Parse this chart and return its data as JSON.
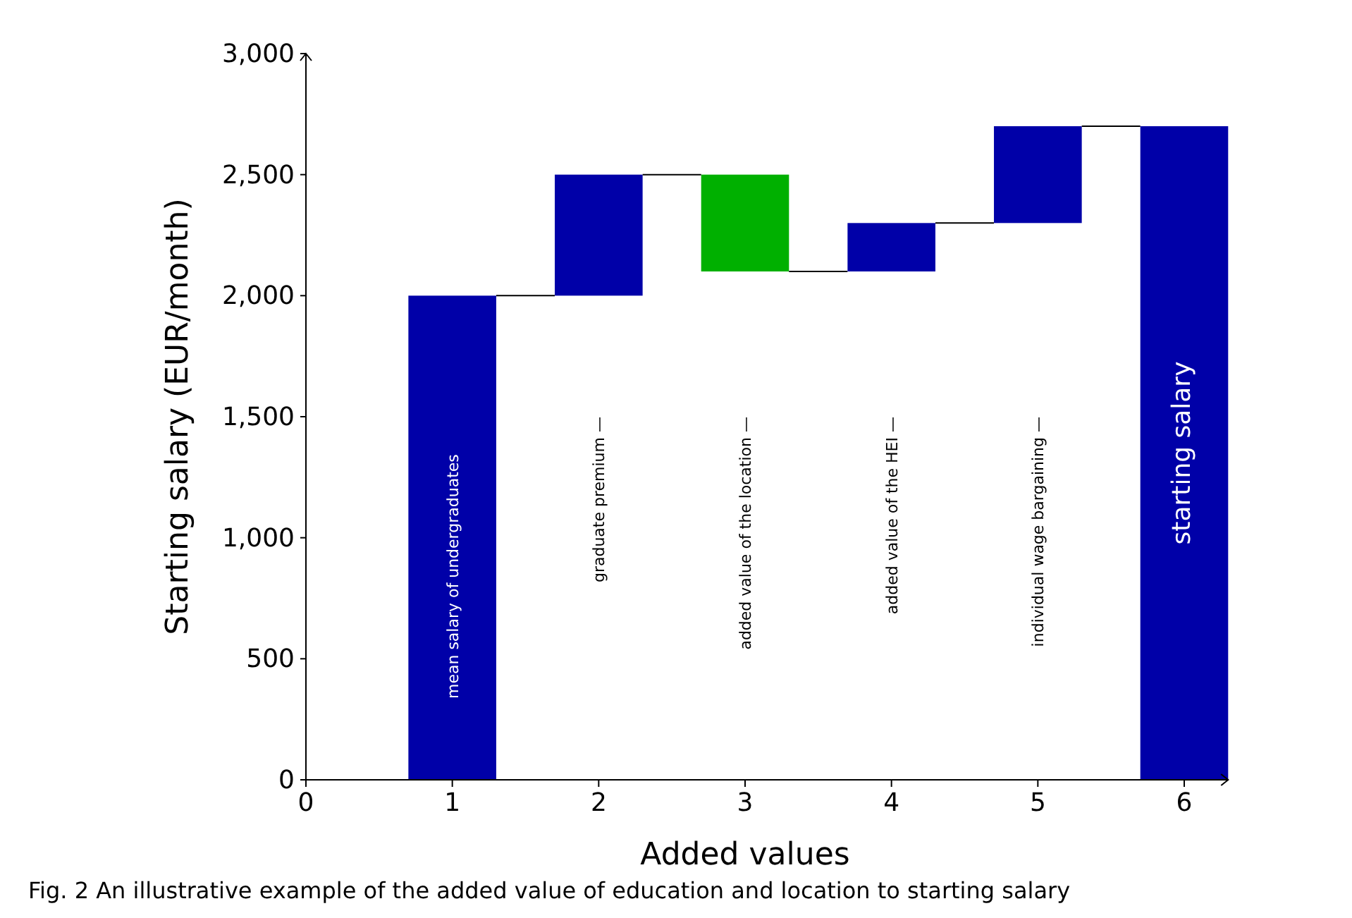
{
  "chart_data": {
    "type": "bar",
    "xlabel": "Added values",
    "ylabel": "Starting salary (EUR/month)",
    "x": [
      1,
      2,
      3,
      4,
      5,
      6
    ],
    "values": [
      2000,
      500,
      -400,
      200,
      400,
      2700
    ],
    "base": [
      0,
      2000,
      2500,
      2100,
      2300,
      0
    ],
    "colors": [
      "#0000a8",
      "#0000a8",
      "#00b000",
      "#0000a8",
      "#0000a8",
      "#0000a8"
    ],
    "xlim": [
      0,
      6.3
    ],
    "xticks": [
      0,
      1,
      2,
      3,
      4,
      5,
      6
    ],
    "ylim": [
      0,
      3000
    ],
    "yticks": [
      0,
      500,
      {
        "value": 1000,
        "label": "1,000"
      },
      {
        "value": 1500,
        "label": "1,500"
      },
      {
        "value": 2000,
        "label": "2,000"
      },
      {
        "value": 2500,
        "label": "2,500"
      },
      {
        "value": 3000,
        "label": "3,000"
      }
    ],
    "grid": false,
    "annotations": [
      "mean salary of undergraduates",
      "graduate premium —",
      "added value of the location —",
      "added value of the HEI —",
      "individual wage bargaining —",
      "starting salary",
      "Fig. 2  An illustrative example of the added value of education and location to starting salary"
    ]
  }
}
